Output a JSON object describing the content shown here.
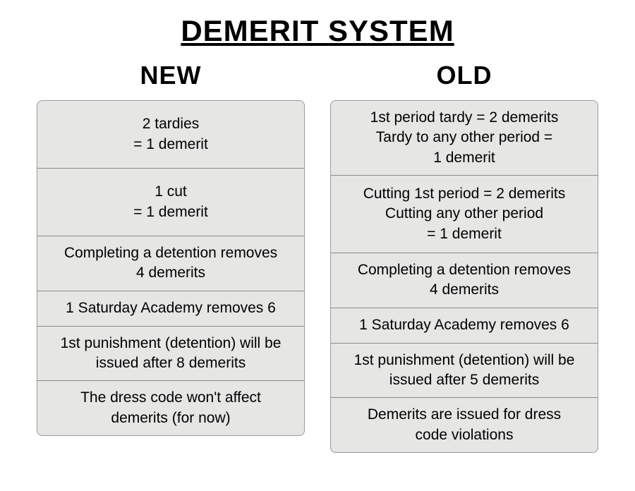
{
  "title": "DEMERIT SYSTEM",
  "background_color": "#ffffff",
  "card_background": "#e6e6e5",
  "card_border_color": "#9a9a98",
  "divider_color": "#8a8a88",
  "text_color": "#000000",
  "title_fontsize": 42,
  "heading_fontsize": 36,
  "body_fontsize": 21,
  "columns": {
    "new": {
      "heading": "NEW",
      "rows": [
        {
          "height": "tall",
          "lines": [
            "2 tardies",
            "= 1 demerit"
          ]
        },
        {
          "height": "tall",
          "lines": [
            "1 cut",
            "= 1 demerit"
          ]
        },
        {
          "height": "mid",
          "lines": [
            "Completing a detention removes",
            "4 demerits"
          ]
        },
        {
          "height": "short",
          "lines": [
            "1 Saturday Academy removes 6"
          ]
        },
        {
          "height": "mid",
          "lines": [
            "1st punishment (detention) will be",
            "issued after 8 demerits"
          ]
        },
        {
          "height": "mid",
          "lines": [
            "The dress code won't affect",
            "demerits (for now)"
          ]
        }
      ]
    },
    "old": {
      "heading": "OLD",
      "rows": [
        {
          "height": "tall",
          "lines": [
            "1st period tardy = 2 demerits",
            "Tardy to any other period =",
            "1 demerit"
          ]
        },
        {
          "height": "tall2",
          "lines": [
            "Cutting 1st period = 2 demerits",
            "Cutting any other period",
            "= 1 demerit"
          ]
        },
        {
          "height": "mid",
          "lines": [
            "Completing a detention removes",
            "4 demerits"
          ]
        },
        {
          "height": "short",
          "lines": [
            "1 Saturday Academy removes 6"
          ]
        },
        {
          "height": "mid",
          "lines": [
            "1st punishment (detention) will be",
            "issued after 5 demerits"
          ]
        },
        {
          "height": "mid",
          "lines": [
            "Demerits are issued for dress",
            "code violations"
          ]
        }
      ]
    }
  }
}
